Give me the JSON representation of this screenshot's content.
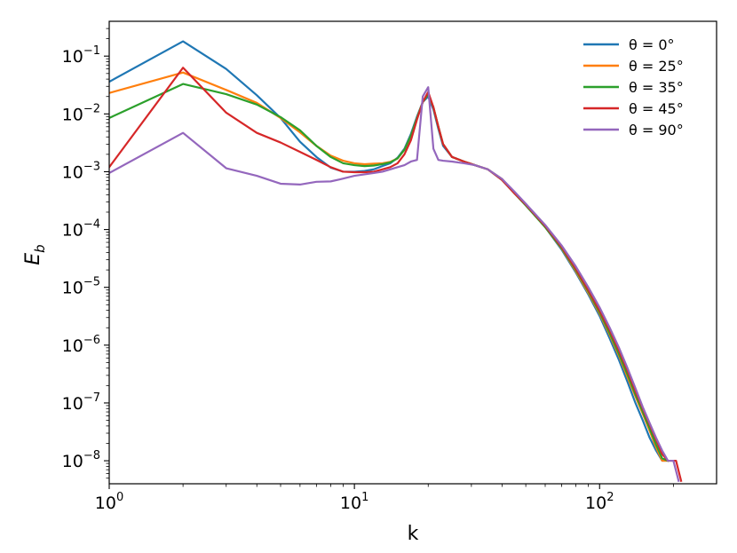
{
  "chart_data": {
    "type": "line",
    "title": "",
    "xlabel": "k",
    "ylabel_base": "E",
    "ylabel_sub": "b",
    "xscale": "log",
    "yscale": "log",
    "xlim": [
      1,
      300
    ],
    "ylim": [
      4e-09,
      0.4
    ],
    "grid": false,
    "legend_position": "top-right",
    "x_ticks": [
      {
        "value": 1,
        "base": "10",
        "exp": "0"
      },
      {
        "value": 10,
        "base": "10",
        "exp": "1"
      },
      {
        "value": 100,
        "base": "10",
        "exp": "2"
      }
    ],
    "y_ticks": [
      {
        "value": 0.1,
        "base": "10",
        "exp": "−1"
      },
      {
        "value": 0.01,
        "base": "10",
        "exp": "−2"
      },
      {
        "value": 0.001,
        "base": "10",
        "exp": "−3"
      },
      {
        "value": 0.0001,
        "base": "10",
        "exp": "−4"
      },
      {
        "value": 1e-05,
        "base": "10",
        "exp": "−5"
      },
      {
        "value": 1e-06,
        "base": "10",
        "exp": "−6"
      },
      {
        "value": 1e-07,
        "base": "10",
        "exp": "−7"
      },
      {
        "value": 1e-08,
        "base": "10",
        "exp": "−8"
      }
    ],
    "series": [
      {
        "name": "θ = 0°",
        "color": "#1f77b4",
        "points": [
          [
            1,
            0.036
          ],
          [
            2,
            0.18
          ],
          [
            3,
            0.06
          ],
          [
            4,
            0.021
          ],
          [
            5,
            0.0085
          ],
          [
            6,
            0.0033
          ],
          [
            7,
            0.0018
          ],
          [
            8,
            0.00118
          ],
          [
            9,
            0.001
          ],
          [
            10,
            0.001
          ],
          [
            11,
            0.00103
          ],
          [
            12,
            0.0011
          ],
          [
            13,
            0.00125
          ],
          [
            14,
            0.0014
          ],
          [
            15,
            0.00175
          ],
          [
            16,
            0.0025
          ],
          [
            17,
            0.0045
          ],
          [
            18,
            0.009
          ],
          [
            19,
            0.016
          ],
          [
            20,
            0.02
          ],
          [
            21,
            0.012
          ],
          [
            22,
            0.0055
          ],
          [
            23,
            0.0028
          ],
          [
            25,
            0.0018
          ],
          [
            28,
            0.0015
          ],
          [
            31,
            0.0013
          ],
          [
            35,
            0.0011
          ],
          [
            40,
            0.00075
          ],
          [
            45,
            0.00043
          ],
          [
            50,
            0.00027
          ],
          [
            60,
            0.00011
          ],
          [
            70,
            4.5e-05
          ],
          [
            80,
            1.8e-05
          ],
          [
            90,
            7.5e-06
          ],
          [
            100,
            3.2e-06
          ],
          [
            110,
            1.3e-06
          ],
          [
            120,
            5.5e-07
          ],
          [
            130,
            2.3e-07
          ],
          [
            140,
            1e-07
          ],
          [
            150,
            5e-08
          ],
          [
            160,
            2.5e-08
          ],
          [
            170,
            1.5e-08
          ],
          [
            180,
            1e-08
          ],
          [
            190,
            1e-08
          ]
        ]
      },
      {
        "name": "θ = 25°",
        "color": "#ff7f0e",
        "points": [
          [
            1,
            0.023
          ],
          [
            2,
            0.052
          ],
          [
            3,
            0.026
          ],
          [
            4,
            0.0155
          ],
          [
            5,
            0.0085
          ],
          [
            6,
            0.0048
          ],
          [
            7,
            0.0028
          ],
          [
            8,
            0.0019
          ],
          [
            9,
            0.00155
          ],
          [
            10,
            0.0014
          ],
          [
            11,
            0.00135
          ],
          [
            12,
            0.00138
          ],
          [
            13,
            0.0014
          ],
          [
            14,
            0.00148
          ],
          [
            15,
            0.0017
          ],
          [
            16,
            0.0024
          ],
          [
            17,
            0.0042
          ],
          [
            18,
            0.0085
          ],
          [
            19,
            0.016
          ],
          [
            20,
            0.022
          ],
          [
            21,
            0.013
          ],
          [
            22,
            0.006
          ],
          [
            23,
            0.003
          ],
          [
            25,
            0.0018
          ],
          [
            28,
            0.0015
          ],
          [
            31,
            0.0013
          ],
          [
            35,
            0.0011
          ],
          [
            40,
            0.00075
          ],
          [
            45,
            0.00043
          ],
          [
            50,
            0.00027
          ],
          [
            60,
            0.00011
          ],
          [
            70,
            4.7e-05
          ],
          [
            80,
            1.9e-05
          ],
          [
            90,
            8e-06
          ],
          [
            100,
            3.5e-06
          ],
          [
            110,
            1.5e-06
          ],
          [
            120,
            6.5e-07
          ],
          [
            130,
            2.8e-07
          ],
          [
            140,
            1.3e-07
          ],
          [
            150,
            6.5e-08
          ],
          [
            160,
            3.3e-08
          ],
          [
            170,
            1.7e-08
          ],
          [
            180,
            1e-08
          ],
          [
            190,
            1e-08
          ]
        ]
      },
      {
        "name": "θ = 35°",
        "color": "#2ca02c",
        "points": [
          [
            1,
            0.0085
          ],
          [
            2,
            0.033
          ],
          [
            3,
            0.022
          ],
          [
            4,
            0.0145
          ],
          [
            5,
            0.0088
          ],
          [
            6,
            0.0052
          ],
          [
            7,
            0.0028
          ],
          [
            8,
            0.0018
          ],
          [
            9,
            0.0014
          ],
          [
            10,
            0.0013
          ],
          [
            11,
            0.00125
          ],
          [
            12,
            0.00128
          ],
          [
            13,
            0.00135
          ],
          [
            14,
            0.00145
          ],
          [
            15,
            0.0017
          ],
          [
            16,
            0.0024
          ],
          [
            17,
            0.0042
          ],
          [
            18,
            0.0085
          ],
          [
            19,
            0.016
          ],
          [
            20,
            0.022
          ],
          [
            21,
            0.013
          ],
          [
            22,
            0.006
          ],
          [
            23,
            0.003
          ],
          [
            25,
            0.0018
          ],
          [
            28,
            0.0015
          ],
          [
            31,
            0.0013
          ],
          [
            35,
            0.0011
          ],
          [
            40,
            0.00072
          ],
          [
            45,
            0.00042
          ],
          [
            50,
            0.00026
          ],
          [
            60,
            0.00011
          ],
          [
            70,
            4.8e-05
          ],
          [
            80,
            2e-05
          ],
          [
            90,
            8.5e-06
          ],
          [
            100,
            3.7e-06
          ],
          [
            110,
            1.6e-06
          ],
          [
            120,
            7e-07
          ],
          [
            130,
            3.1e-07
          ],
          [
            140,
            1.4e-07
          ],
          [
            150,
            7e-08
          ],
          [
            160,
            3.6e-08
          ],
          [
            170,
            1.9e-08
          ],
          [
            180,
            1.1e-08
          ],
          [
            190,
            1e-08
          ]
        ]
      },
      {
        "name": "θ = 45°",
        "color": "#d62728",
        "points": [
          [
            1,
            0.0012
          ],
          [
            2,
            0.063
          ],
          [
            3,
            0.0105
          ],
          [
            4,
            0.0047
          ],
          [
            5,
            0.0032
          ],
          [
            6,
            0.0022
          ],
          [
            7,
            0.0016
          ],
          [
            8,
            0.0012
          ],
          [
            9,
            0.001
          ],
          [
            10,
            0.00098
          ],
          [
            11,
            0.00098
          ],
          [
            12,
            0.001
          ],
          [
            13,
            0.0011
          ],
          [
            14,
            0.0012
          ],
          [
            15,
            0.0014
          ],
          [
            16,
            0.002
          ],
          [
            17,
            0.0035
          ],
          [
            18,
            0.008
          ],
          [
            19,
            0.016
          ],
          [
            20,
            0.024
          ],
          [
            21,
            0.013
          ],
          [
            22,
            0.006
          ],
          [
            23,
            0.003
          ],
          [
            25,
            0.0018
          ],
          [
            28,
            0.0015
          ],
          [
            31,
            0.0013
          ],
          [
            35,
            0.0011
          ],
          [
            40,
            0.00072
          ],
          [
            45,
            0.00042
          ],
          [
            50,
            0.00027
          ],
          [
            60,
            0.000115
          ],
          [
            70,
            5e-05
          ],
          [
            80,
            2.1e-05
          ],
          [
            90,
            9e-06
          ],
          [
            100,
            4e-06
          ],
          [
            110,
            1.8e-06
          ],
          [
            120,
            8e-07
          ],
          [
            130,
            3.6e-07
          ],
          [
            140,
            1.6e-07
          ],
          [
            150,
            8e-08
          ],
          [
            160,
            4.2e-08
          ],
          [
            170,
            2.3e-08
          ],
          [
            180,
            1.3e-08
          ],
          [
            190,
            1e-08
          ],
          [
            205,
            1e-08
          ],
          [
            215,
            4.5e-09
          ]
        ]
      },
      {
        "name": "θ = 90°",
        "color": "#9467bd",
        "points": [
          [
            1,
            0.00095
          ],
          [
            2,
            0.0047
          ],
          [
            3,
            0.00115
          ],
          [
            4,
            0.00085
          ],
          [
            5,
            0.00062
          ],
          [
            6,
            0.0006
          ],
          [
            7,
            0.00067
          ],
          [
            8,
            0.00068
          ],
          [
            9,
            0.00076
          ],
          [
            10,
            0.00085
          ],
          [
            11,
            0.0009
          ],
          [
            12,
            0.00095
          ],
          [
            13,
            0.001
          ],
          [
            14,
            0.0011
          ],
          [
            15,
            0.0012
          ],
          [
            16,
            0.0013
          ],
          [
            17,
            0.0015
          ],
          [
            18,
            0.0016
          ],
          [
            19,
            0.02
          ],
          [
            20,
            0.029
          ],
          [
            21,
            0.0025
          ],
          [
            22,
            0.0016
          ],
          [
            23,
            0.00155
          ],
          [
            25,
            0.0015
          ],
          [
            28,
            0.0014
          ],
          [
            31,
            0.0013
          ],
          [
            35,
            0.0011
          ],
          [
            40,
            0.00075
          ],
          [
            45,
            0.00045
          ],
          [
            50,
            0.00028
          ],
          [
            60,
            0.00012
          ],
          [
            70,
            5.3e-05
          ],
          [
            80,
            2.3e-05
          ],
          [
            90,
            1e-05
          ],
          [
            100,
            4.5e-06
          ],
          [
            110,
            2e-06
          ],
          [
            120,
            9e-07
          ],
          [
            130,
            4e-07
          ],
          [
            140,
            1.8e-07
          ],
          [
            150,
            8.5e-08
          ],
          [
            160,
            4.5e-08
          ],
          [
            170,
            2.5e-08
          ],
          [
            180,
            1.5e-08
          ],
          [
            190,
            1e-08
          ],
          [
            200,
            1e-08
          ],
          [
            210,
            4.5e-09
          ]
        ]
      }
    ]
  }
}
